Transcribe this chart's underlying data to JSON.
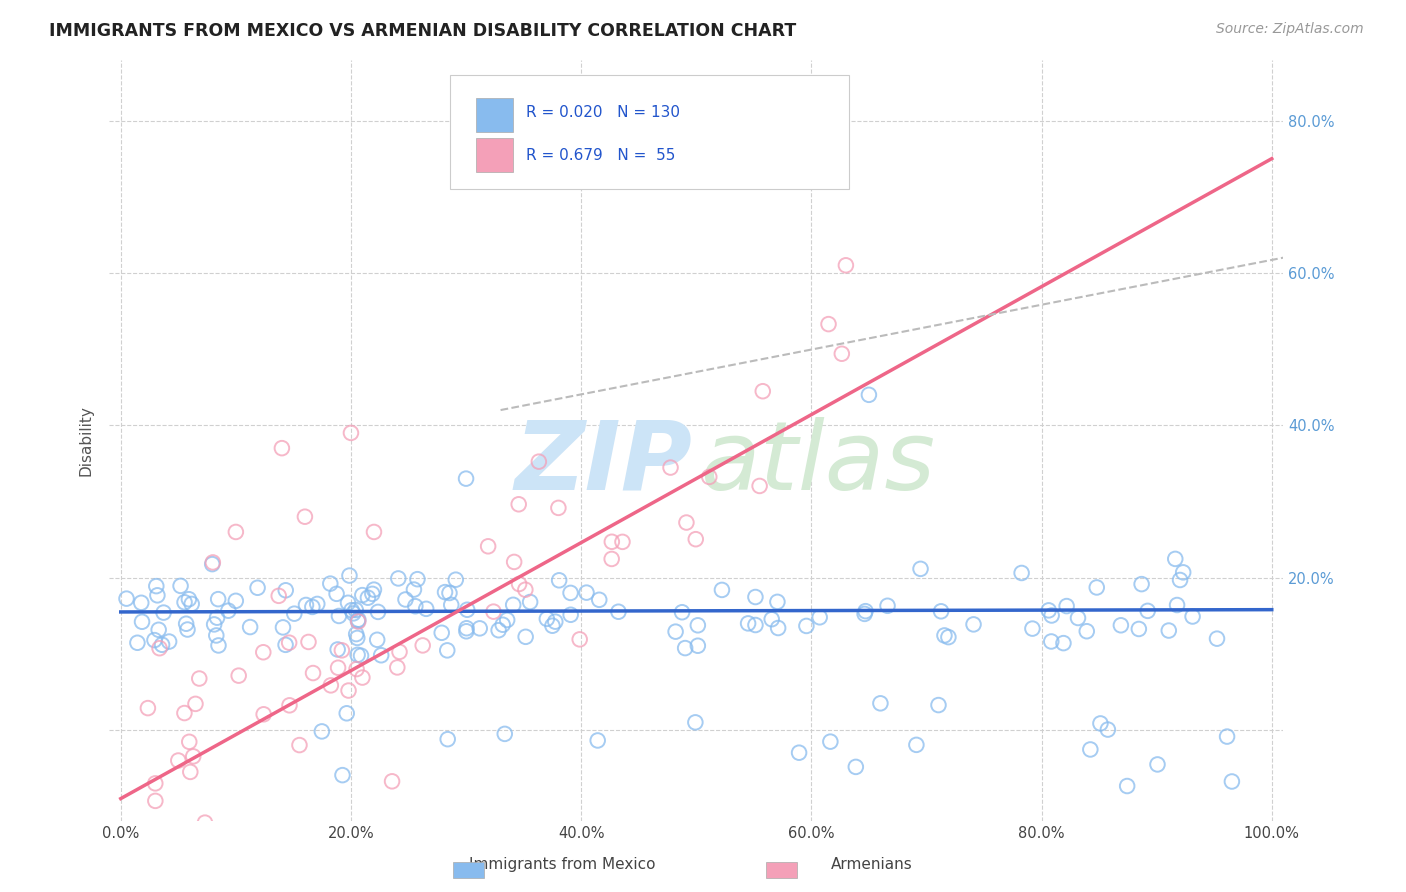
{
  "title": "IMMIGRANTS FROM MEXICO VS ARMENIAN DISABILITY CORRELATION CHART",
  "source_text": "Source: ZipAtlas.com",
  "ylabel": "Disability",
  "legend_label1": "Immigrants from Mexico",
  "legend_label2": "Armenians",
  "R1": "0.020",
  "N1": "130",
  "R2": "0.679",
  "N2": "55",
  "xlim": [
    -0.01,
    1.01
  ],
  "ylim": [
    -0.12,
    0.88
  ],
  "xticks": [
    0.0,
    0.2,
    0.4,
    0.6,
    0.8,
    1.0
  ],
  "yticks": [
    0.0,
    0.2,
    0.4,
    0.6,
    0.8
  ],
  "xticklabels": [
    "0.0%",
    "20.0%",
    "40.0%",
    "60.0%",
    "80.0%",
    "100.0%"
  ],
  "yticklabels_right": [
    "",
    "20.0%",
    "40.0%",
    "60.0%",
    "80.0%"
  ],
  "color_blue": "#88bbee",
  "color_pink": "#f4a0b8",
  "color_blue_line": "#3366cc",
  "color_pink_line": "#ee6688",
  "color_dashed": "#bbbbbb",
  "watermark_zip_color": "#cce4f7",
  "watermark_atlas_color": "#d4ead4",
  "blue_line_y": [
    0.155,
    0.158
  ],
  "pink_line_x": [
    0.0,
    1.0
  ],
  "pink_line_y": [
    -0.09,
    0.75
  ],
  "gray_line_x": [
    0.33,
    1.01
  ],
  "gray_line_y": [
    0.42,
    0.62
  ]
}
